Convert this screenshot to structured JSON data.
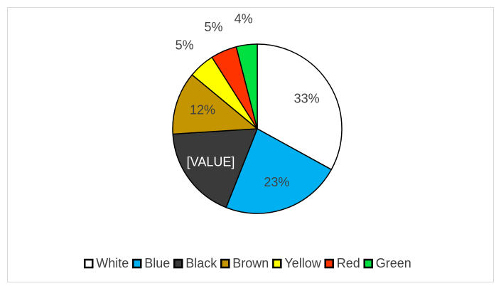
{
  "chart_data": {
    "type": "pie",
    "categories": [
      "White",
      "Blue",
      "Black",
      "Brown",
      "Yellow",
      "Red",
      "Green"
    ],
    "values": [
      33,
      23,
      18,
      12,
      5,
      5,
      4
    ],
    "value_labels": [
      "33%",
      "23%",
      "[VALUE]",
      "12%",
      "5%",
      "5%",
      "4%"
    ],
    "colors": [
      "#ffffff",
      "#00b0f0",
      "#3a3a3a",
      "#c49500",
      "#ffff00",
      "#ff3300",
      "#00e040"
    ],
    "legend": "bottom"
  }
}
